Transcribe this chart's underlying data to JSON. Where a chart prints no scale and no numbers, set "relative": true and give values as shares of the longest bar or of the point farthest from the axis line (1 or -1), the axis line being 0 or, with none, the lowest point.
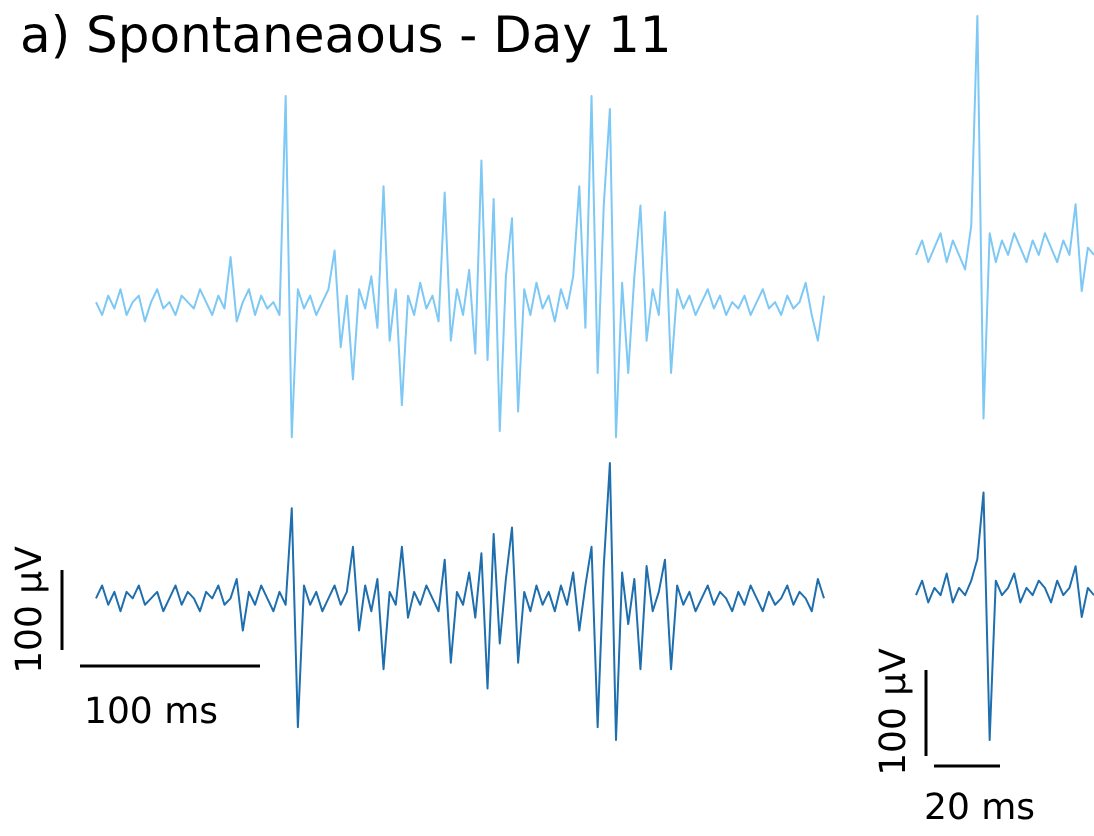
{
  "chart_data": [
    {
      "type": "line",
      "title": "a) Spontaneaous - Day 11",
      "relative": true,
      "marker": "none",
      "annotations": [
        "100 µV",
        "100 ms"
      ],
      "categories": [
        null,
        null,
        null,
        null,
        null,
        null,
        null,
        null,
        null,
        null,
        null,
        null,
        null,
        null,
        null,
        null,
        null,
        null,
        null,
        null,
        null,
        null,
        null,
        null,
        null,
        null,
        null,
        null,
        null,
        null,
        null,
        null,
        null,
        null,
        null,
        null,
        null,
        null,
        null,
        null,
        null,
        null,
        null,
        null,
        null,
        null,
        null,
        null,
        null,
        null,
        null,
        null,
        null,
        null,
        null,
        null,
        null,
        null,
        null,
        null,
        null,
        null,
        null,
        null,
        null,
        null,
        null,
        null,
        null,
        null,
        null,
        null,
        null,
        null,
        null,
        null,
        null,
        null,
        null,
        null,
        null,
        null,
        null,
        null,
        null,
        null,
        null,
        null,
        null,
        null,
        null,
        null,
        null,
        null,
        null,
        null,
        null,
        null,
        null,
        null,
        null,
        null,
        null,
        null,
        null,
        null,
        null,
        null,
        null,
        null,
        null,
        null,
        null,
        null,
        null,
        null,
        null,
        null,
        null,
        null
      ],
      "series": [
        {
          "color": "#7ec8f5",
          "values": [
            0.68,
            0.66,
            0.69,
            0.67,
            0.7,
            0.66,
            0.68,
            0.69,
            0.65,
            0.68,
            0.7,
            0.67,
            0.68,
            0.66,
            0.69,
            0.68,
            0.67,
            0.7,
            0.68,
            0.66,
            0.69,
            0.67,
            0.75,
            0.65,
            0.68,
            0.7,
            0.66,
            0.69,
            0.67,
            0.68,
            0.66,
            1,
            0.47,
            0.7,
            0.67,
            0.69,
            0.66,
            0.68,
            0.7,
            0.76,
            0.61,
            0.69,
            0.56,
            0.7,
            0.67,
            0.72,
            0.64,
            0.86,
            0.62,
            0.7,
            0.52,
            0.69,
            0.66,
            0.71,
            0.67,
            0.69,
            0.65,
            0.85,
            0.62,
            0.7,
            0.66,
            0.73,
            0.6,
            0.9,
            0.59,
            0.84,
            0.48,
            0.72,
            0.81,
            0.51,
            0.7,
            0.66,
            0.71,
            0.67,
            0.69,
            0.65,
            0.7,
            0.67,
            0.72,
            0.86,
            0.64,
            1,
            0.57,
            0.83,
            0.98,
            0.47,
            0.71,
            0.57,
            0.72,
            0.83,
            0.62,
            0.7,
            0.66,
            0.82,
            0.57,
            0.7,
            0.67,
            0.69,
            0.66,
            0.68,
            0.7,
            0.67,
            0.69,
            0.66,
            0.68,
            0.67,
            0.69,
            0.66,
            0.68,
            0.7,
            0.67,
            0.68,
            0.66,
            0.69,
            0.67,
            0.68,
            0.71,
            0.66,
            0.62,
            0.69
          ]
        },
        {
          "color": "#1f6fae",
          "values": [
            0.22,
            0.24,
            0.21,
            0.23,
            0.2,
            0.23,
            0.22,
            0.24,
            0.21,
            0.22,
            0.23,
            0.2,
            0.22,
            0.24,
            0.21,
            0.23,
            0.22,
            0.2,
            0.23,
            0.22,
            0.24,
            0.21,
            0.22,
            0.25,
            0.17,
            0.23,
            0.21,
            0.24,
            0.22,
            0.2,
            0.23,
            0.21,
            0.36,
            0.02,
            0.24,
            0.21,
            0.23,
            0.2,
            0.22,
            0.24,
            0.21,
            0.23,
            0.3,
            0.17,
            0.24,
            0.2,
            0.25,
            0.11,
            0.23,
            0.21,
            0.3,
            0.19,
            0.23,
            0.21,
            0.24,
            0.22,
            0.2,
            0.28,
            0.12,
            0.23,
            0.21,
            0.26,
            0.19,
            0.29,
            0.08,
            0.32,
            0.15,
            0.25,
            0.33,
            0.12,
            0.23,
            0.2,
            0.24,
            0.21,
            0.23,
            0.2,
            0.24,
            0.21,
            0.26,
            0.17,
            0.24,
            0.3,
            0.02,
            0.27,
            0.43,
            0,
            0.26,
            0.18,
            0.25,
            0.11,
            0.27,
            0.2,
            0.23,
            0.28,
            0.11,
            0.24,
            0.21,
            0.23,
            0.2,
            0.22,
            0.24,
            0.21,
            0.23,
            0.22,
            0.2,
            0.23,
            0.21,
            0.24,
            0.22,
            0.2,
            0.23,
            0.21,
            0.22,
            0.24,
            0.21,
            0.23,
            0.22,
            0.2,
            0.25,
            0.22
          ]
        }
      ]
    },
    {
      "type": "line",
      "relative": true,
      "marker": "none",
      "annotations": [
        "100 µV",
        "20 ms"
      ],
      "categories": [
        null,
        null,
        null,
        null,
        null,
        null,
        null,
        null,
        null,
        null,
        null,
        null,
        null,
        null,
        null,
        null,
        null,
        null,
        null,
        null,
        null,
        null,
        null,
        null,
        null,
        null,
        null,
        null,
        null,
        null
      ],
      "series": [
        {
          "color": "#7ec8f5",
          "values": [
            0.67,
            0.69,
            0.66,
            0.68,
            0.7,
            0.66,
            0.69,
            0.67,
            0.65,
            0.71,
            1,
            0.444,
            0.7,
            0.66,
            0.69,
            0.67,
            0.7,
            0.68,
            0.66,
            0.69,
            0.67,
            0.7,
            0.68,
            0.66,
            0.69,
            0.67,
            0.74,
            0.62,
            0.68,
            0.67
          ]
        },
        {
          "color": "#1f6fae",
          "values": [
            0.2,
            0.22,
            0.19,
            0.21,
            0.2,
            0.23,
            0.19,
            0.21,
            0.2,
            0.22,
            0.25,
            0.342,
            0,
            0.22,
            0.2,
            0.21,
            0.23,
            0.19,
            0.21,
            0.2,
            0.22,
            0.21,
            0.19,
            0.22,
            0.2,
            0.21,
            0.24,
            0.17,
            0.21,
            0.2
          ]
        }
      ]
    }
  ]
}
